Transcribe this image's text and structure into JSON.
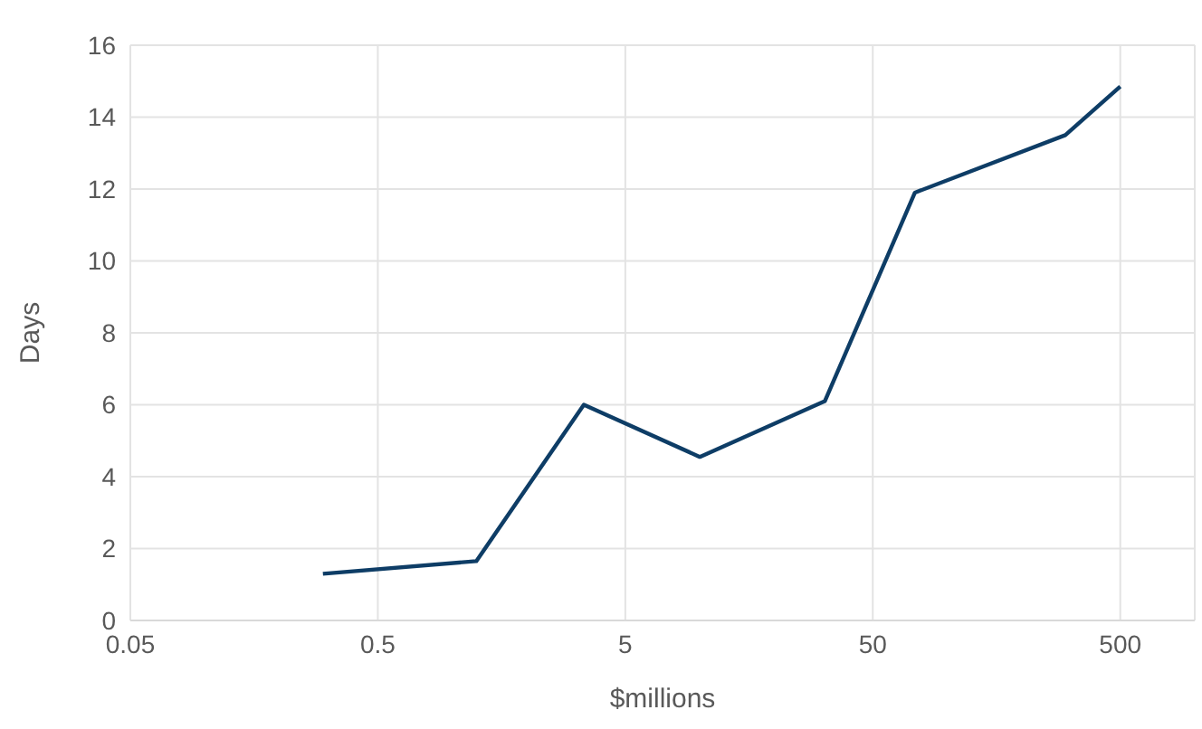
{
  "chart_data": {
    "type": "line",
    "xlabel": "$millions",
    "ylabel": "Days",
    "x": [
      0.3,
      1.25,
      3.4,
      10,
      32,
      74,
      300,
      500
    ],
    "series": [
      {
        "color": "#0e3d66",
        "values": [
          1.3,
          1.65,
          6,
          4.55,
          6.1,
          11.9,
          13.5,
          14.85
        ]
      }
    ],
    "log": "x",
    "xlim": [
      0.05,
      1000
    ],
    "xticks": [
      0.05,
      0.5,
      5,
      50,
      500
    ],
    "ylim": [
      0,
      16
    ],
    "yticks": [
      0,
      2,
      4,
      6,
      8,
      10,
      12,
      14,
      16
    ],
    "grid": true,
    "marker": "none",
    "line_style": "solid",
    "legend": false
  }
}
